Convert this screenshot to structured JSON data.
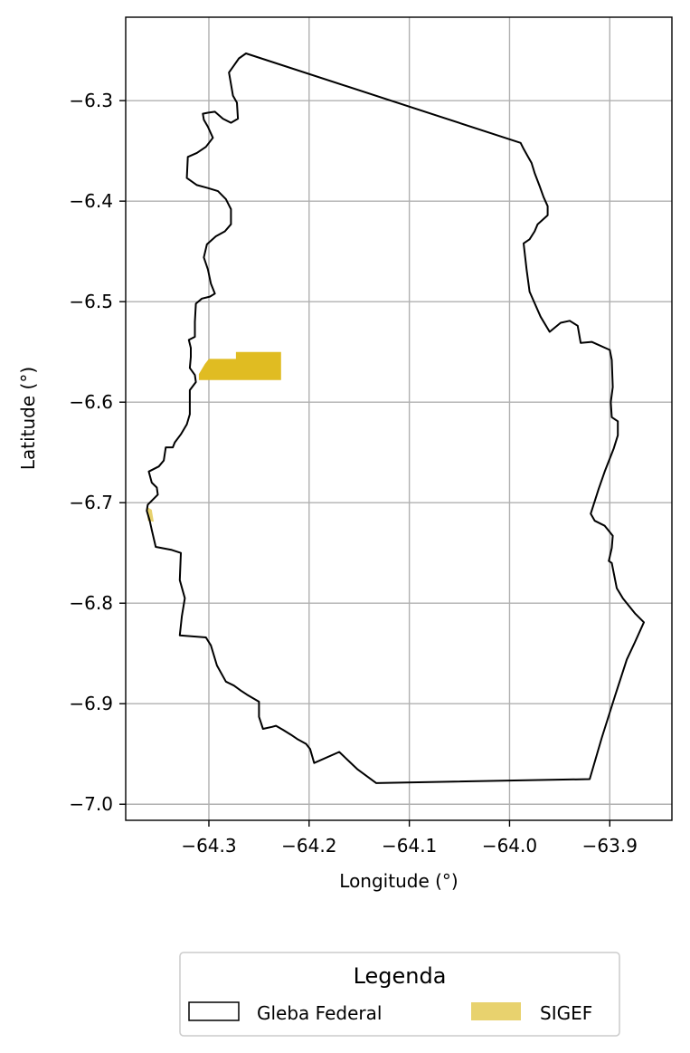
{
  "chart_data": {
    "type": "map",
    "xlabel": "Longitude (°)",
    "ylabel": "Latitude (°)",
    "xlim": [
      -64.383,
      -63.838
    ],
    "ylim": [
      -7.016,
      -6.217
    ],
    "grid": true,
    "x_ticks": [
      {
        "value": -64.3,
        "label": "−64.3"
      },
      {
        "value": -64.2,
        "label": "−64.2"
      },
      {
        "value": -64.1,
        "label": "−64.1"
      },
      {
        "value": -64.0,
        "label": "−64.0"
      },
      {
        "value": -63.9,
        "label": "−63.9"
      }
    ],
    "y_ticks": [
      {
        "value": -6.3,
        "label": "−6.3"
      },
      {
        "value": -6.4,
        "label": "−6.4"
      },
      {
        "value": -6.5,
        "label": "−6.5"
      },
      {
        "value": -6.6,
        "label": "−6.6"
      },
      {
        "value": -6.7,
        "label": "−6.7"
      },
      {
        "value": -6.8,
        "label": "−6.8"
      },
      {
        "value": -6.9,
        "label": "−6.9"
      },
      {
        "value": -7.0,
        "label": "−7.0"
      }
    ],
    "legend": {
      "title": "Legenda",
      "placement": "bottom-center",
      "entries": [
        {
          "label": "Gleba Federal",
          "style": "outline",
          "color": "#000000"
        },
        {
          "label": "SIGEF",
          "style": "fill",
          "color": "#e8d26e"
        }
      ]
    },
    "gleba_federal": {
      "name": "Gleba Federal",
      "color": "#000000",
      "coordinates": [
        [
          -64.263,
          -6.253
        ],
        [
          -64.27,
          -6.258
        ],
        [
          -64.275,
          -6.265
        ],
        [
          -64.28,
          -6.272
        ],
        [
          -64.276,
          -6.295
        ],
        [
          -64.272,
          -6.302
        ],
        [
          -64.271,
          -6.318
        ],
        [
          -64.278,
          -6.322
        ],
        [
          -64.286,
          -6.318
        ],
        [
          -64.294,
          -6.311
        ],
        [
          -64.301,
          -6.312
        ],
        [
          -64.306,
          -6.313
        ],
        [
          -64.305,
          -6.319
        ],
        [
          -64.301,
          -6.326
        ],
        [
          -64.296,
          -6.337
        ],
        [
          -64.303,
          -6.346
        ],
        [
          -64.312,
          -6.352
        ],
        [
          -64.321,
          -6.356
        ],
        [
          -64.322,
          -6.377
        ],
        [
          -64.312,
          -6.384
        ],
        [
          -64.301,
          -6.387
        ],
        [
          -64.291,
          -6.39
        ],
        [
          -64.283,
          -6.398
        ],
        [
          -64.278,
          -6.408
        ],
        [
          -64.278,
          -6.423
        ],
        [
          -64.284,
          -6.43
        ],
        [
          -64.293,
          -6.435
        ],
        [
          -64.302,
          -6.443
        ],
        [
          -64.305,
          -6.456
        ],
        [
          -64.301,
          -6.468
        ],
        [
          -64.298,
          -6.482
        ],
        [
          -64.294,
          -6.492
        ],
        [
          -64.299,
          -6.495
        ],
        [
          -64.307,
          -6.497
        ],
        [
          -64.313,
          -6.502
        ],
        [
          -64.314,
          -6.52
        ],
        [
          -64.314,
          -6.535
        ],
        [
          -64.32,
          -6.538
        ],
        [
          -64.318,
          -6.546
        ],
        [
          -64.318,
          -6.555
        ],
        [
          -64.319,
          -6.566
        ],
        [
          -64.314,
          -6.573
        ],
        [
          -64.313,
          -6.58
        ],
        [
          -64.319,
          -6.588
        ],
        [
          -64.319,
          -6.603
        ],
        [
          -64.319,
          -6.612
        ],
        [
          -64.322,
          -6.622
        ],
        [
          -64.328,
          -6.632
        ],
        [
          -64.334,
          -6.64
        ],
        [
          -64.336,
          -6.645
        ],
        [
          -64.343,
          -6.645
        ],
        [
          -64.345,
          -6.658
        ],
        [
          -64.35,
          -6.664
        ],
        [
          -64.36,
          -6.669
        ],
        [
          -64.357,
          -6.68
        ],
        [
          -64.352,
          -6.685
        ],
        [
          -64.351,
          -6.692
        ],
        [
          -64.361,
          -6.702
        ],
        [
          -64.362,
          -6.708
        ],
        [
          -64.359,
          -6.718
        ],
        [
          -64.357,
          -6.727
        ],
        [
          -64.353,
          -6.744
        ],
        [
          -64.337,
          -6.747
        ],
        [
          -64.328,
          -6.75
        ],
        [
          -64.329,
          -6.777
        ],
        [
          -64.324,
          -6.795
        ],
        [
          -64.327,
          -6.813
        ],
        [
          -64.329,
          -6.832
        ],
        [
          -64.303,
          -6.834
        ],
        [
          -64.298,
          -6.842
        ],
        [
          -64.292,
          -6.862
        ],
        [
          -64.283,
          -6.878
        ],
        [
          -64.275,
          -6.882
        ],
        [
          -64.268,
          -6.887
        ],
        [
          -64.262,
          -6.891
        ],
        [
          -64.25,
          -6.898
        ],
        [
          -64.25,
          -6.913
        ],
        [
          -64.246,
          -6.925
        ],
        [
          -64.237,
          -6.923
        ],
        [
          -64.233,
          -6.922
        ],
        [
          -64.226,
          -6.926
        ],
        [
          -64.218,
          -6.931
        ],
        [
          -64.212,
          -6.935
        ],
        [
          -64.203,
          -6.94
        ],
        [
          -64.199,
          -6.945
        ],
        [
          -64.195,
          -6.959
        ],
        [
          -64.17,
          -6.948
        ],
        [
          -64.152,
          -6.965
        ],
        [
          -64.133,
          -6.979
        ],
        [
          -63.92,
          -6.975
        ],
        [
          -63.908,
          -6.934
        ],
        [
          -63.895,
          -6.893
        ],
        [
          -63.883,
          -6.856
        ],
        [
          -63.875,
          -6.839
        ],
        [
          -63.866,
          -6.819
        ],
        [
          -63.875,
          -6.81
        ],
        [
          -63.887,
          -6.795
        ],
        [
          -63.893,
          -6.785
        ],
        [
          -63.896,
          -6.77
        ],
        [
          -63.898,
          -6.76
        ],
        [
          -63.901,
          -6.758
        ],
        [
          -63.898,
          -6.745
        ],
        [
          -63.897,
          -6.733
        ],
        [
          -63.905,
          -6.723
        ],
        [
          -63.915,
          -6.718
        ],
        [
          -63.919,
          -6.711
        ],
        [
          -63.911,
          -6.686
        ],
        [
          -63.905,
          -6.669
        ],
        [
          -63.896,
          -6.646
        ],
        [
          -63.892,
          -6.633
        ],
        [
          -63.892,
          -6.619
        ],
        [
          -63.898,
          -6.615
        ],
        [
          -63.899,
          -6.6
        ],
        [
          -63.897,
          -6.585
        ],
        [
          -63.898,
          -6.558
        ],
        [
          -63.9,
          -6.548
        ],
        [
          -63.918,
          -6.54
        ],
        [
          -63.929,
          -6.541
        ],
        [
          -63.932,
          -6.524
        ],
        [
          -63.94,
          -6.519
        ],
        [
          -63.949,
          -6.521
        ],
        [
          -63.96,
          -6.53
        ],
        [
          -63.969,
          -6.515
        ],
        [
          -63.98,
          -6.49
        ],
        [
          -63.983,
          -6.468
        ],
        [
          -63.986,
          -6.442
        ],
        [
          -63.98,
          -6.438
        ],
        [
          -63.975,
          -6.43
        ],
        [
          -63.972,
          -6.423
        ],
        [
          -63.962,
          -6.414
        ],
        [
          -63.962,
          -6.405
        ],
        [
          -63.966,
          -6.396
        ],
        [
          -63.97,
          -6.385
        ],
        [
          -63.975,
          -6.372
        ],
        [
          -63.978,
          -6.362
        ],
        [
          -63.982,
          -6.355
        ],
        [
          -63.986,
          -6.348
        ],
        [
          -63.989,
          -6.342
        ]
      ]
    },
    "sigef": [
      {
        "name": "SIGEF",
        "color": "#e0bc22",
        "coordinates": [
          [
            -64.31,
            -6.578
          ],
          [
            -64.228,
            -6.578
          ],
          [
            -64.228,
            -6.55
          ],
          [
            -64.273,
            -6.55
          ],
          [
            -64.273,
            -6.557
          ],
          [
            -64.3,
            -6.557
          ],
          [
            -64.304,
            -6.562
          ],
          [
            -64.31,
            -6.572
          ]
        ]
      },
      {
        "name": "SIGEF",
        "color": "#e8d26e",
        "coordinates": [
          [
            -64.362,
            -6.704
          ],
          [
            -64.357,
            -6.707
          ],
          [
            -64.355,
            -6.719
          ],
          [
            -64.361,
            -6.718
          ]
        ]
      }
    ]
  }
}
